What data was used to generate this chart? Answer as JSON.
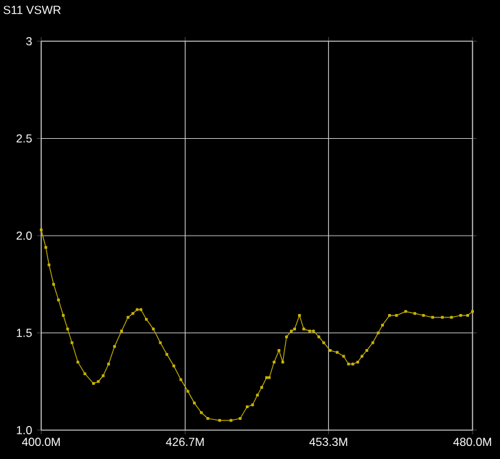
{
  "chart_data": {
    "type": "line",
    "title": "S11 VSWR",
    "x": [
      400,
      400.85,
      401.45,
      402.3,
      403.2,
      404.1,
      404.9,
      405.7,
      406.8,
      408.1,
      409.7,
      410.6,
      411.5,
      412.5,
      413.6,
      414.9,
      416.1,
      417.0,
      417.8,
      418.5,
      419.5,
      420.8,
      422.1,
      423.3,
      424.6,
      425.9,
      427.2,
      428.4,
      429.7,
      430.9,
      433.1,
      435.2,
      436.9,
      438.2,
      439.2,
      440.1,
      440.9,
      441.8,
      442.3,
      443.2,
      444.1,
      444.8,
      445.5,
      446.4,
      447.0,
      447.9,
      448.7,
      449.8,
      450.5,
      451.5,
      452.4,
      453.6,
      454.9,
      456.1,
      457.0,
      457.8,
      458.7,
      459.5,
      460.4,
      461.5,
      462.5,
      463.3,
      464.6,
      465.9,
      467.6,
      469.3,
      470.9,
      472.6,
      474.4,
      476.1,
      477.8,
      479.1,
      480
    ],
    "series": [
      {
        "color": "#c8b400",
        "values": [
          2.03,
          1.94,
          1.85,
          1.75,
          1.67,
          1.59,
          1.52,
          1.45,
          1.35,
          1.29,
          1.24,
          1.25,
          1.28,
          1.34,
          1.43,
          1.51,
          1.58,
          1.6,
          1.62,
          1.62,
          1.57,
          1.52,
          1.45,
          1.39,
          1.33,
          1.26,
          1.2,
          1.14,
          1.09,
          1.06,
          1.05,
          1.05,
          1.06,
          1.12,
          1.13,
          1.18,
          1.22,
          1.27,
          1.27,
          1.35,
          1.41,
          1.35,
          1.48,
          1.51,
          1.52,
          1.59,
          1.52,
          1.51,
          1.51,
          1.48,
          1.45,
          1.41,
          1.4,
          1.38,
          1.34,
          1.34,
          1.35,
          1.38,
          1.41,
          1.45,
          1.5,
          1.54,
          1.59,
          1.59,
          1.61,
          1.6,
          1.59,
          1.58,
          1.58,
          1.58,
          1.59,
          1.59,
          1.61
        ]
      }
    ],
    "xlim": [
      400,
      480
    ],
    "xticks": [
      {
        "value": 400,
        "label": "400.0M"
      },
      {
        "value": 426.7,
        "label": "426.7M"
      },
      {
        "value": 453.3,
        "label": "453.3M"
      },
      {
        "value": 480,
        "label": "480.0M"
      }
    ],
    "ylim": [
      1,
      3
    ],
    "yticks": [
      {
        "value": 1,
        "label": "1.0"
      },
      {
        "value": 1.5,
        "label": "1.5"
      },
      {
        "value": 2,
        "label": "2.0"
      },
      {
        "value": 2.5,
        "label": "2.5"
      },
      3
    ],
    "grid": true,
    "marker": "square",
    "line_style": "solid"
  }
}
